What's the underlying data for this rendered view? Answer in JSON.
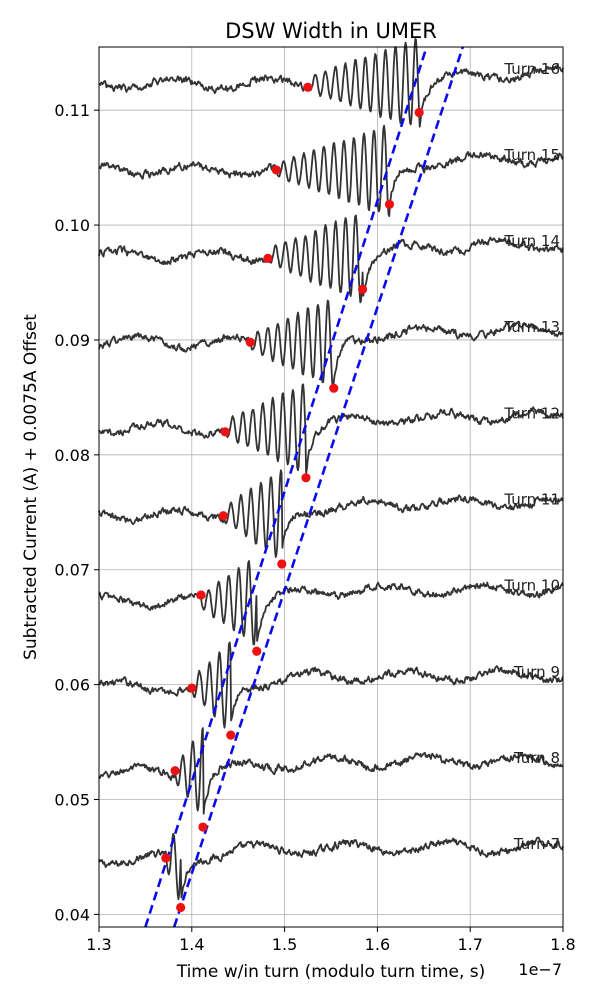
{
  "chart_data": {
    "type": "line",
    "title": "DSW Width in UMER",
    "xlabel": "Time w/in turn (modulo turn time, s)",
    "ylabel": "Subtracted Current (A) + 0.0075A Offset",
    "x_scale_label": "1e−7",
    "xlim": [
      1.3,
      1.8
    ],
    "ylim": [
      0.0389,
      0.1155
    ],
    "xticks": [
      1.3,
      1.4,
      1.5,
      1.6,
      1.7,
      1.8
    ],
    "xtick_labels": [
      "1.3",
      "1.4",
      "1.5",
      "1.6",
      "1.7",
      "1.8"
    ],
    "yticks": [
      0.04,
      0.05,
      0.06,
      0.07,
      0.08,
      0.09,
      0.1,
      0.11
    ],
    "ytick_labels": [
      "0.04",
      "0.05",
      "0.06",
      "0.07",
      "0.08",
      "0.09",
      "0.10",
      "0.11"
    ],
    "grid": true,
    "offset_per_turn": 0.0075,
    "series": [
      {
        "name": "Turn 7",
        "baseline": 0.0448,
        "front": [
          1.372,
          0.0449
        ],
        "back": [
          1.388,
          0.0406
        ]
      },
      {
        "name": "Turn 8",
        "baseline": 0.0523,
        "front": [
          1.382,
          0.0525
        ],
        "back": [
          1.412,
          0.0476
        ]
      },
      {
        "name": "Turn 9",
        "baseline": 0.0598,
        "front": [
          1.4,
          0.0597
        ],
        "back": [
          1.442,
          0.0556
        ]
      },
      {
        "name": "Turn 10",
        "baseline": 0.0673,
        "front": [
          1.41,
          0.0678
        ],
        "back": [
          1.47,
          0.0629
        ]
      },
      {
        "name": "Turn 11",
        "baseline": 0.0748,
        "front": [
          1.434,
          0.0747
        ],
        "back": [
          1.497,
          0.0705
        ]
      },
      {
        "name": "Turn 12",
        "baseline": 0.0823,
        "front": [
          1.436,
          0.082
        ],
        "back": [
          1.523,
          0.078
        ]
      },
      {
        "name": "Turn 13",
        "baseline": 0.0898,
        "front": [
          1.463,
          0.0898
        ],
        "back": [
          1.553,
          0.0858
        ]
      },
      {
        "name": "Turn 14",
        "baseline": 0.0973,
        "front": [
          1.482,
          0.0971
        ],
        "back": [
          1.584,
          0.0944
        ]
      },
      {
        "name": "Turn 15",
        "baseline": 0.1048,
        "front": [
          1.491,
          0.1048
        ],
        "back": [
          1.613,
          0.1018
        ]
      },
      {
        "name": "Turn 16",
        "baseline": 0.1123,
        "front": [
          1.525,
          0.112
        ],
        "back": [
          1.645,
          0.1098
        ]
      }
    ],
    "fit_lines": [
      {
        "name": "front",
        "points": [
          [
            1.35,
            0.0389
          ],
          [
            1.653,
            0.1155
          ]
        ]
      },
      {
        "name": "back",
        "points": [
          [
            1.381,
            0.0389
          ],
          [
            1.692,
            0.1155
          ]
        ]
      }
    ]
  }
}
